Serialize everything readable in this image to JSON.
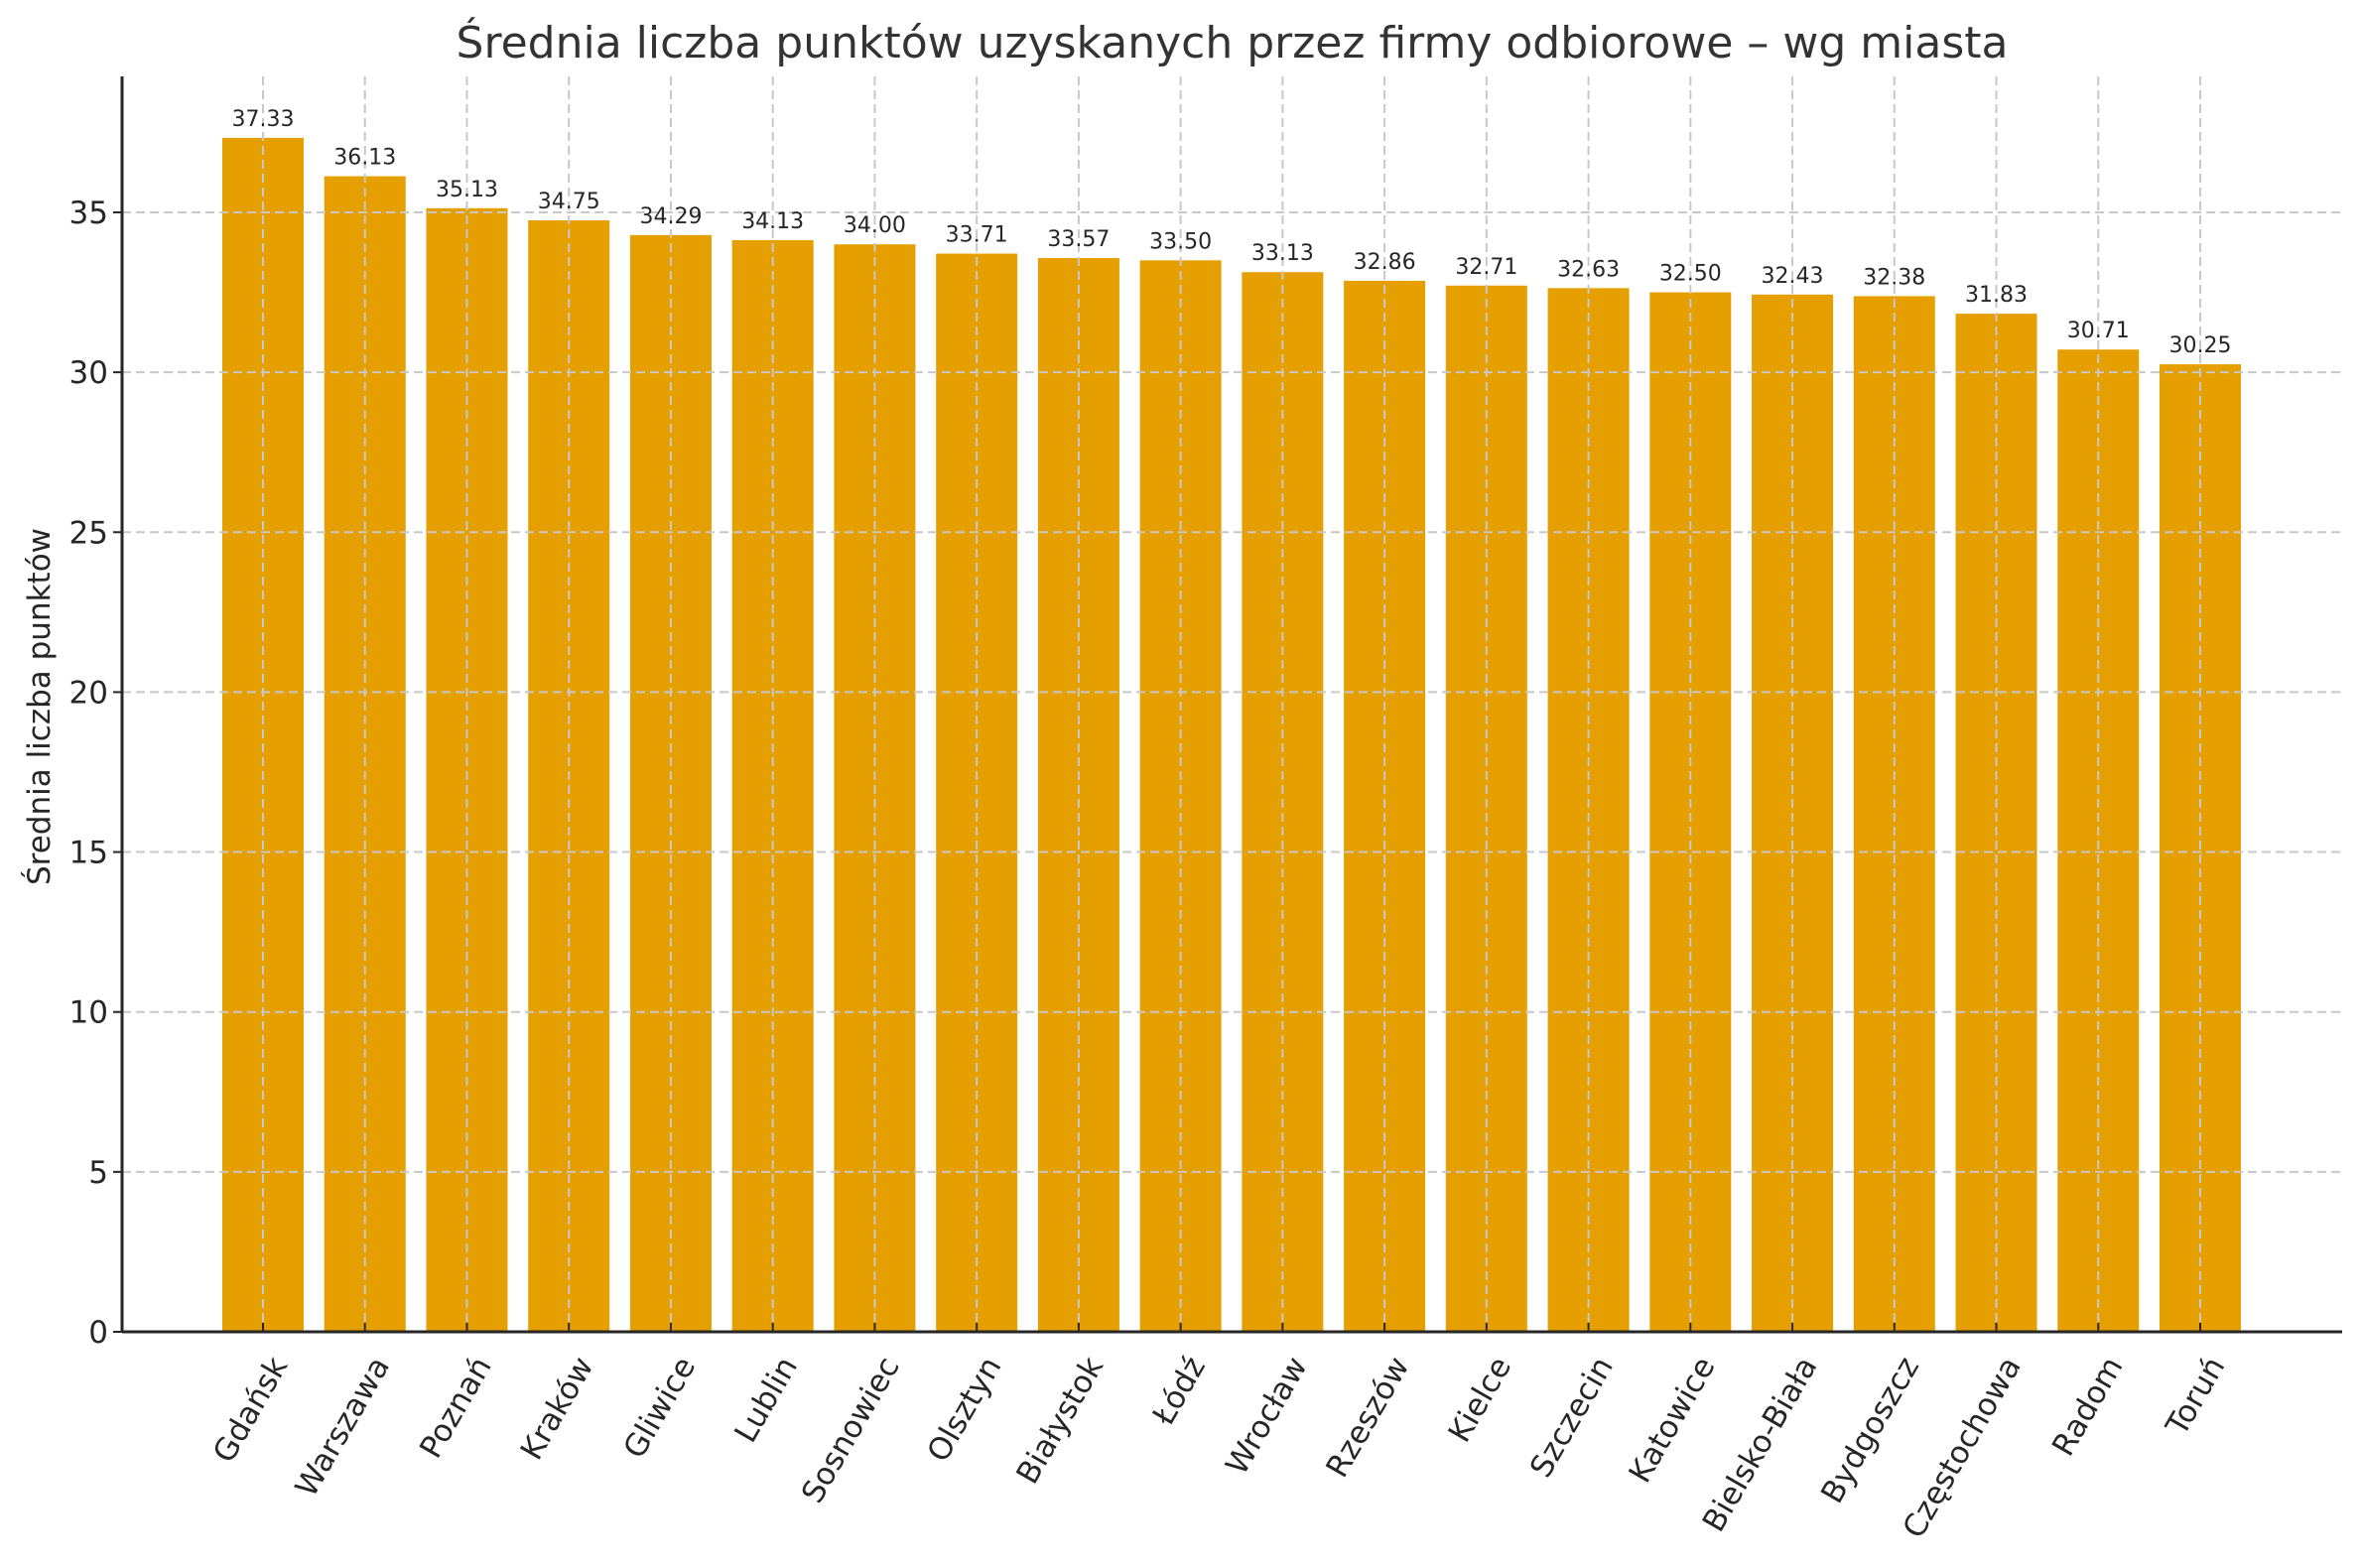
{
  "chart_data": {
    "type": "bar",
    "title": "Średnia liczba punktów uzyskanych przez firmy odbiorowe – wg miasta",
    "xlabel": "",
    "ylabel": "Średnia liczba punktów",
    "categories": [
      "Gdańsk",
      "Warszawa",
      "Poznań",
      "Kraków",
      "Gliwice",
      "Lublin",
      "Sosnowiec",
      "Olsztyn",
      "Białystok",
      "Łódź",
      "Wrocław",
      "Rzeszów",
      "Kielce",
      "Szczecin",
      "Katowice",
      "Bielsko-Biała",
      "Bydgoszcz",
      "Częstochowa",
      "Radom",
      "Toruń"
    ],
    "values": [
      37.33,
      36.13,
      35.13,
      34.75,
      34.29,
      34.13,
      34.0,
      33.71,
      33.57,
      33.5,
      33.13,
      32.86,
      32.71,
      32.63,
      32.5,
      32.43,
      32.38,
      31.83,
      30.71,
      30.25
    ],
    "value_labels": [
      "37.33",
      "36.13",
      "35.13",
      "34.75",
      "34.29",
      "34.13",
      "34.00",
      "33.71",
      "33.57",
      "33.50",
      "33.13",
      "32.86",
      "32.71",
      "32.63",
      "32.50",
      "32.43",
      "32.38",
      "31.83",
      "30.71",
      "30.25"
    ],
    "ylim": [
      0,
      39.25
    ],
    "yticks": [
      0,
      5,
      10,
      15,
      20,
      25,
      30,
      35
    ],
    "grid": true,
    "grid_style": "dashed",
    "legend": null,
    "bar_color": "#E69F00",
    "x_tick_rotation": 60
  }
}
